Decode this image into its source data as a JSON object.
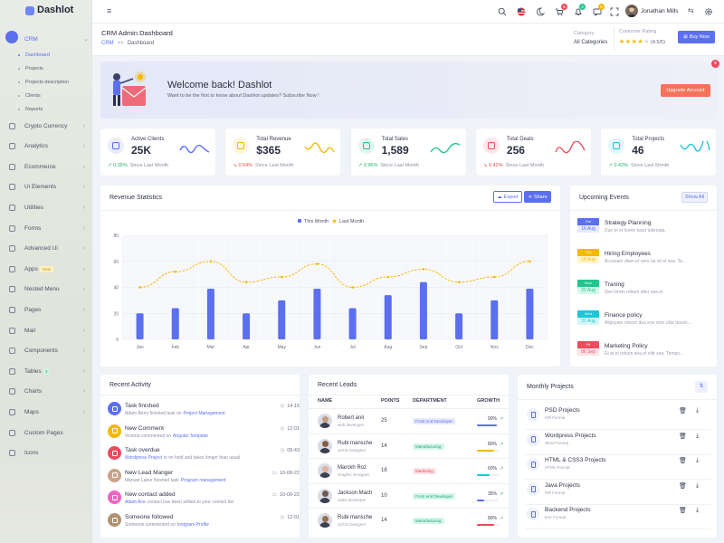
{
  "brand": {
    "name": "Dashlot"
  },
  "sidebar": {
    "crm": "CRM",
    "crm_sub": [
      "Dashboard",
      "Projects",
      "Projects description",
      "Clients",
      "Reports"
    ],
    "items": [
      {
        "label": "Crypto Currency"
      },
      {
        "label": "Analytics"
      },
      {
        "label": "Ecommerce"
      },
      {
        "label": "Ui Elements"
      },
      {
        "label": "Utilities"
      },
      {
        "label": "Forms"
      },
      {
        "label": "Advanced Ui"
      },
      {
        "label": "Apps",
        "badge": "New"
      },
      {
        "label": "Nested Menu"
      },
      {
        "label": "Pages"
      },
      {
        "label": "Mail"
      },
      {
        "label": "Components"
      },
      {
        "label": "Tables",
        "badge": "3"
      },
      {
        "label": "Charts"
      },
      {
        "label": "Maps"
      },
      {
        "label": "Custom Pages"
      },
      {
        "label": "Icons"
      }
    ]
  },
  "topbar": {
    "user": "Jonathan Mills",
    "badges": {
      "cart": "5",
      "notifications": "4",
      "messages": "5"
    }
  },
  "header": {
    "title": "CRM Admin Dashboard",
    "breadcrumb_root": "CRM",
    "breadcrumb_sep": ">>",
    "breadcrumb_current": "Dashboard",
    "category_label": "Category",
    "category_value": "All Categories",
    "rating_label": "Customer Rating",
    "rating_text": "(4.5/5)",
    "buy_now": "Buy Now"
  },
  "welcome": {
    "title": "Welcome back! Dashlot",
    "subtitle": "Want to be the first to know about Dashlot updates? Subscribe Now !",
    "button": "Upgrade Account"
  },
  "stats": [
    {
      "label": "Active Clients",
      "value": "25K",
      "change": "0.35%",
      "dir": "up",
      "suffix": "Since Last Month",
      "color": "#5b6ff0"
    },
    {
      "label": "Total Revenue",
      "value": "$365",
      "change": "0.54%",
      "dir": "down",
      "suffix": "Since Last Month",
      "color": "#f5b800"
    },
    {
      "label": "Total Sales",
      "value": "1,589",
      "change": "0.96%",
      "dir": "up",
      "suffix": "Since Last Month",
      "color": "#23c58e"
    },
    {
      "label": "Total Deals",
      "value": "256",
      "change": "0.42%",
      "dir": "down",
      "suffix": "Since Last Month",
      "color": "#ee4b5c"
    },
    {
      "label": "Total Projects",
      "value": "46",
      "change": "0.42%",
      "dir": "up",
      "suffix": "Since Last Month",
      "color": "#1ec6d6"
    }
  ],
  "revenue": {
    "title": "Revenue Statistics",
    "export": "Export",
    "share": "Share"
  },
  "chart_data": {
    "type": "bar",
    "categories": [
      "Jan",
      "Feb",
      "Mar",
      "Apr",
      "May",
      "Jun",
      "Jul",
      "Aug",
      "Sep",
      "Oct",
      "Nov",
      "Dec"
    ],
    "series": [
      {
        "name": "This Month",
        "type": "bar",
        "values": [
          20,
          24,
          39,
          20,
          30,
          39,
          24,
          34,
          44,
          20,
          30,
          39
        ],
        "color": "#5b6ff0"
      },
      {
        "name": "Last Month",
        "type": "line",
        "values": [
          40,
          52,
          60,
          44,
          48,
          58,
          40,
          48,
          54,
          44,
          48,
          60
        ],
        "color": "#f5b800"
      }
    ],
    "ylim": [
      0,
      80
    ],
    "yticks": [
      0,
      20,
      40,
      60,
      80
    ],
    "grid": true,
    "legend": "top-center"
  },
  "events": {
    "title": "Upcoming Events",
    "show_all": "Show All",
    "items": [
      {
        "day": "Tue",
        "date": "16 Aug",
        "title": "Strategy Planning",
        "desc": "Duo et et lorem kasd takimata.",
        "color": "#5b6ff0",
        "light": "#e6e9fd"
      },
      {
        "day": "Thu",
        "date": "18 Aug",
        "title": "Hiring Employees",
        "desc": "Accusam diam et vero ea sit et sea. Te...",
        "color": "#f5b800",
        "light": "#fff4cc"
      },
      {
        "day": "Mon",
        "date": "22 Aug",
        "title": "Traning",
        "desc": "Stet lorem rebum alter sea et.",
        "color": "#23c58e",
        "light": "#d6f6ea"
      },
      {
        "day": "Wed",
        "date": "31 Aug",
        "title": "Finance policy",
        "desc": "Aliquyam rebum duo eos vero clita Ipsum...",
        "color": "#1ec6d6",
        "light": "#d4f6f9"
      },
      {
        "day": "Fri",
        "date": "06 Sep",
        "title": "Marketing Policy",
        "desc": "Et at et rebum sea et elitr sea. Tempo...",
        "color": "#ee4b5c",
        "light": "#fde3e6"
      }
    ]
  },
  "activity": {
    "title": "Recent Activity",
    "items": [
      {
        "title": "Task finished",
        "pre": "Adam Berry finished task on",
        "link": "Project Management",
        "post": "",
        "time": "14:15",
        "color": "#5b6ff0"
      },
      {
        "title": "New Comment",
        "pre": "Victoria commented on",
        "link": "Angular Template",
        "post": "",
        "time": "12:01",
        "color": "#f5b800"
      },
      {
        "title": "Task overdue",
        "pre": "",
        "link": "Wordpress Project",
        "post": "is on hold and takes longer than usual",
        "time": "09:43",
        "color": "#ee4b5c"
      },
      {
        "title": "New Lead Manger",
        "pre": "Manuel Labor finished task",
        "link": "Program management",
        "post": "",
        "time": "10-08-22",
        "color": "#c9a48a"
      },
      {
        "title": "New contact added",
        "pre": "",
        "link": "Adam Ace",
        "post": "contact has been added to your contact list",
        "time": "10-09-22",
        "color": "#f062c0"
      },
      {
        "title": "Someone followed",
        "pre": "Someone commented on",
        "link": "Instgram Profile",
        "post": "",
        "time": "12:01",
        "color": "#b0926f"
      }
    ]
  },
  "leads": {
    "title": "Recent Leads",
    "columns": [
      "NAME",
      "POINTS",
      "DEPARTMENT",
      "GROWTH"
    ],
    "rows": [
      {
        "name": "Robert anii",
        "role": "web developer",
        "points": "25",
        "dept": "Front end Developer",
        "growth": "90%",
        "pct": 0.9,
        "bar": "#5b6ff0",
        "dc": "#5b6ff0",
        "db": "#e6e9fd"
      },
      {
        "name": "Rubi mansche",
        "role": "UI/UX Designer",
        "points": "14",
        "dept": "Manufacturing",
        "growth": "80%",
        "pct": 0.8,
        "bar": "#f5b800",
        "dc": "#1ea873",
        "db": "#d6f6ea"
      },
      {
        "name": "Marckh Roz",
        "role": "Graphic Designer",
        "points": "18",
        "dept": "Marketing",
        "growth": "60%",
        "pct": 0.6,
        "bar": "#1ec6d6",
        "dc": "#e24a5a",
        "db": "#fde3e6"
      },
      {
        "name": "Jackson Mach",
        "role": "sales developer",
        "points": "10",
        "dept": "Front end Developer",
        "growth": "35%",
        "pct": 0.35,
        "bar": "#5b6ff0",
        "dc": "#1ea873",
        "db": "#d6f6ea"
      },
      {
        "name": "Rubi mansche",
        "role": "UI/UX Designer",
        "points": "14",
        "dept": "Manufacturing",
        "growth": "80%",
        "pct": 0.8,
        "bar": "#ee4b5c",
        "dc": "#1ea873",
        "db": "#d6f6ea"
      }
    ]
  },
  "projects": {
    "title": "Monthly Projects",
    "items": [
      {
        "name": "PSD Projects",
        "format": "Pdf Format"
      },
      {
        "name": "Wordpress Projects",
        "format": "Word Format"
      },
      {
        "name": "HTML & CSS3 Projects",
        "format": "HTML Format"
      },
      {
        "name": "Java Projects",
        "format": "Pdf Format"
      },
      {
        "name": "Backend Projects",
        "format": "Exe Format"
      }
    ]
  }
}
